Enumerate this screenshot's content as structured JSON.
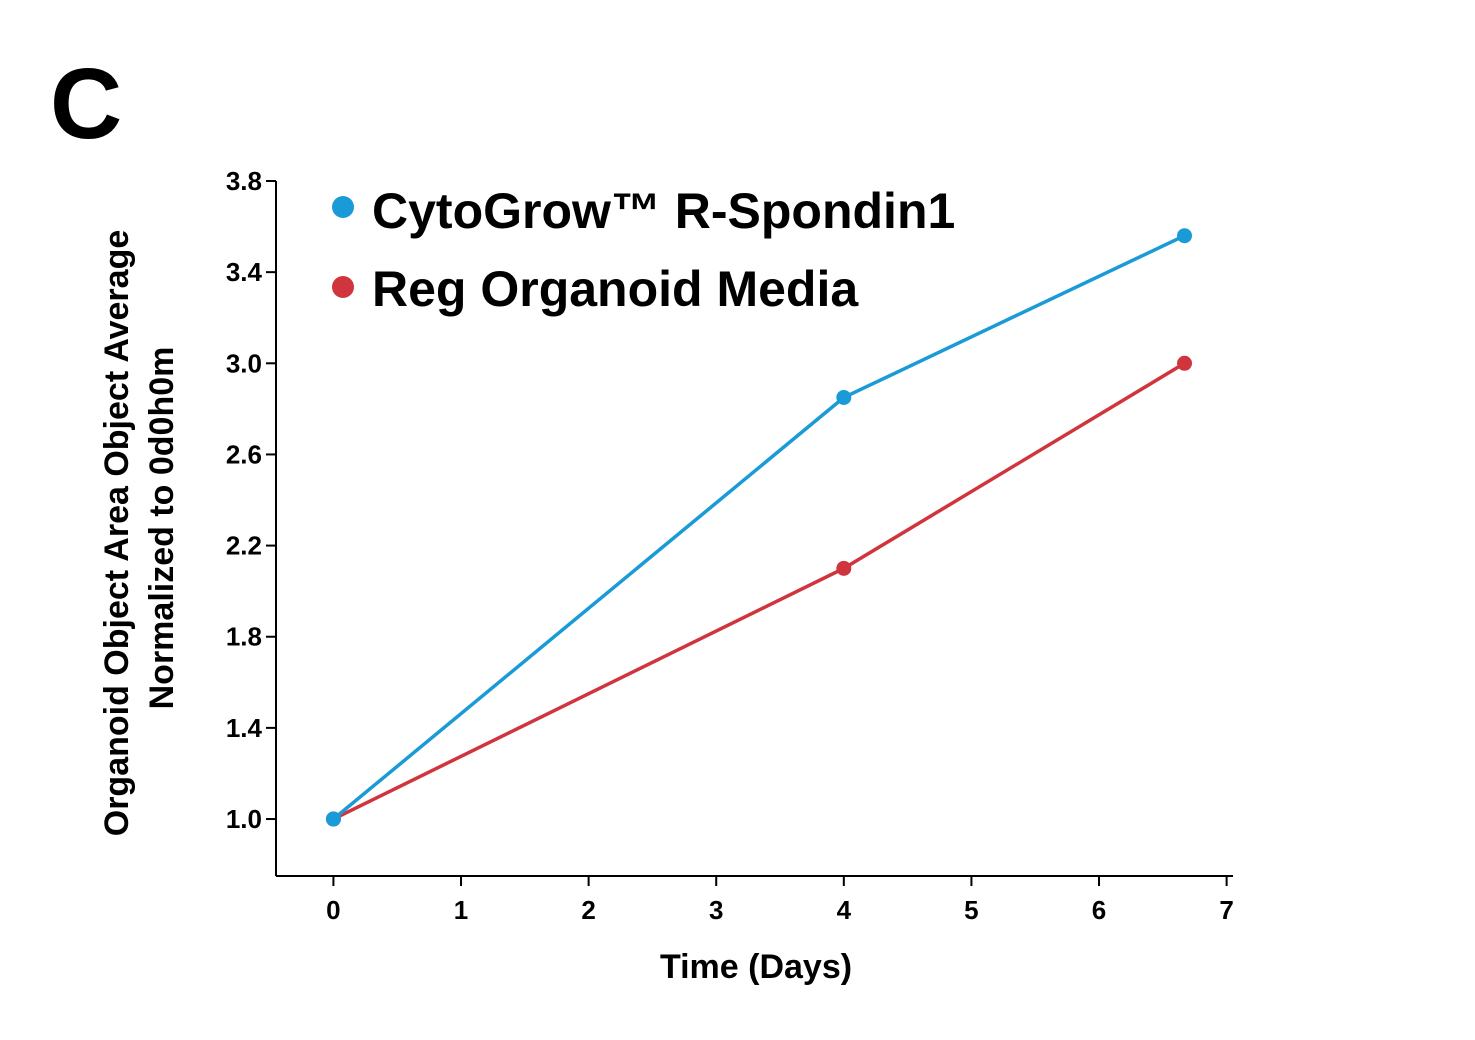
{
  "panel_label": "C",
  "colors": {
    "series_blue": "#1a9bd7",
    "series_red": "#d0343c",
    "axis": "#000000"
  },
  "chart_data": {
    "type": "line",
    "xlabel": "Time (Days)",
    "ylabel_line1": "Organoid Object Area Object Average",
    "ylabel_line2": "Normalized to 0d0h0m",
    "xlim": [
      -0.45,
      7.05
    ],
    "ylim": [
      0.75,
      3.8
    ],
    "xticks": [
      0,
      1,
      2,
      3,
      4,
      5,
      6,
      7
    ],
    "xtick_labels": [
      "0",
      "1",
      "2",
      "3",
      "4",
      "5",
      "6",
      "7"
    ],
    "yticks": [
      1.0,
      1.4,
      1.8,
      2.2,
      2.6,
      3.0,
      3.4,
      3.8
    ],
    "ytick_labels": [
      "1.0",
      "1.4",
      "1.8",
      "2.2",
      "2.6",
      "3.0",
      "3.4",
      "3.8"
    ],
    "legend_position": "top-left",
    "series": [
      {
        "name": "CytoGrow™ R-Spondin1",
        "color": "#1a9bd7",
        "x": [
          0,
          4,
          6.67
        ],
        "y": [
          1.0,
          2.85,
          3.56
        ]
      },
      {
        "name": "Reg Organoid Media",
        "color": "#d0343c",
        "x": [
          0,
          4,
          6.67
        ],
        "y": [
          1.0,
          2.1,
          3.0
        ]
      }
    ]
  }
}
